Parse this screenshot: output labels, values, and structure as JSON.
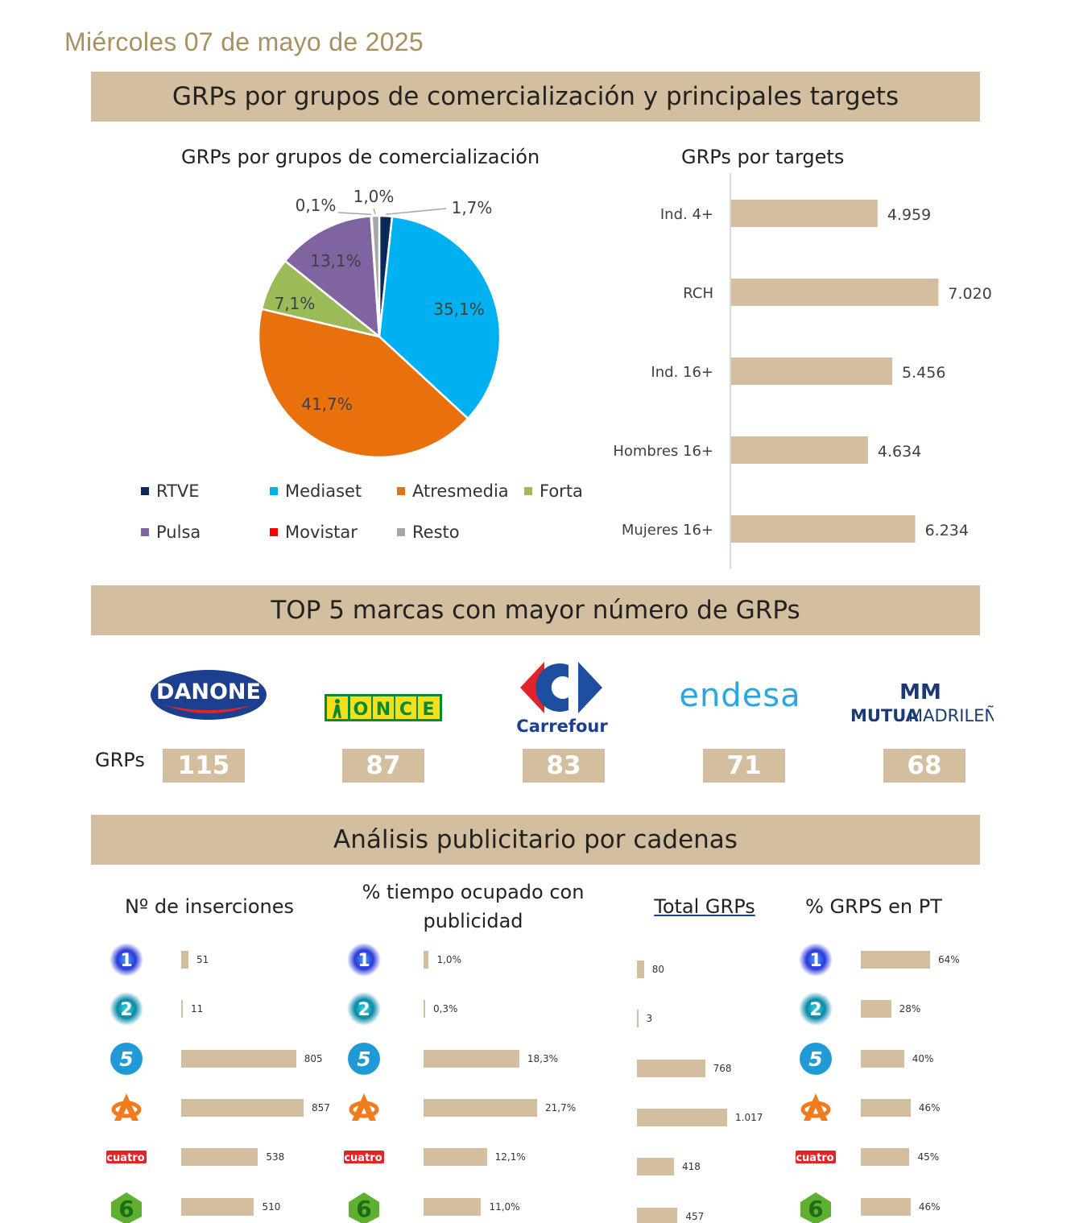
{
  "date": "Miércoles 07 de mayo de 2025",
  "banners": {
    "grps": "GRPs por grupos de comercialización y principales targets",
    "top5": "TOP 5 marcas con mayor número de GRPs",
    "cadenas": "Análisis publicitario por cadenas"
  },
  "pie_title": "GRPs por grupos de comercialización",
  "bar_title": "GRPs por targets",
  "colors": {
    "accent": "#d3bf9f",
    "rtve": "#0b2a5c",
    "mediaset": "#00b0f0",
    "atresmedia": "#e8700d",
    "forta": "#9bbb59",
    "pulsa": "#8064a2",
    "movistar": "#ff0000",
    "resto": "#a6a6a6"
  },
  "chart_data": [
    {
      "type": "pie",
      "title": "GRPs por grupos de comercialización",
      "slices": [
        {
          "name": "RTVE",
          "value": 1.7,
          "label": "1,7%"
        },
        {
          "name": "Mediaset",
          "value": 35.1,
          "label": "35,1%"
        },
        {
          "name": "Atresmedia",
          "value": 41.7,
          "label": "41,7%"
        },
        {
          "name": "Forta",
          "value": 7.1,
          "label": "7,1%"
        },
        {
          "name": "Pulsa",
          "value": 13.1,
          "label": "13,1%"
        },
        {
          "name": "Movistar",
          "value": 0.1,
          "label": "0,1%"
        },
        {
          "name": "Resto",
          "value": 1.0,
          "label": "1,0%"
        }
      ],
      "legend": [
        "RTVE",
        "Mediaset",
        "Atresmedia",
        "Forta",
        "Pulsa",
        "Movistar",
        "Resto"
      ],
      "legend_placement": "bottom"
    },
    {
      "type": "bar",
      "orientation": "horizontal",
      "title": "GRPs por targets",
      "categories": [
        "Ind. 4+",
        "RCH",
        "Ind. 16+",
        "Hombres 16+",
        "Mujeres 16+"
      ],
      "values": [
        4959,
        7020,
        5456,
        4634,
        6234
      ],
      "labels": [
        "4.959",
        "7.020",
        "5.456",
        "4.634",
        "6.234"
      ],
      "xlim": [
        0,
        7200
      ],
      "grid": false
    },
    {
      "type": "bar",
      "orientation": "horizontal",
      "title": "Nº de inserciones",
      "categories": [
        "La 1",
        "La 2",
        "Telecinco",
        "Antena 3",
        "Cuatro",
        "laSexta"
      ],
      "values": [
        51,
        11,
        805,
        857,
        538,
        510
      ],
      "labels": [
        "51",
        "11",
        "805",
        "857",
        "538",
        "510"
      ]
    },
    {
      "type": "bar",
      "orientation": "horizontal",
      "title": "% tiempo ocupado con publicidad",
      "categories": [
        "La 1",
        "La 2",
        "Telecinco",
        "Antena 3",
        "Cuatro",
        "laSexta"
      ],
      "values": [
        1.0,
        0.3,
        18.3,
        21.7,
        12.1,
        11.0
      ],
      "labels": [
        "1,0%",
        "0,3%",
        "18,3%",
        "21,7%",
        "12,1%",
        "11,0%"
      ]
    },
    {
      "type": "bar",
      "orientation": "horizontal",
      "title": "Total GRPs",
      "categories": [
        "La 1",
        "La 2",
        "Telecinco",
        "Antena 3",
        "Cuatro",
        "laSexta"
      ],
      "values": [
        80,
        3,
        768,
        1017,
        418,
        457
      ],
      "labels": [
        "80",
        "3",
        "768",
        "1.017",
        "418",
        "457"
      ]
    },
    {
      "type": "bar",
      "orientation": "horizontal",
      "title": "% GRPS en PT",
      "categories": [
        "La 1",
        "La 2",
        "Telecinco",
        "Antena 3",
        "Cuatro",
        "laSexta"
      ],
      "values": [
        64,
        28,
        40,
        46,
        45,
        46
      ],
      "labels": [
        "64%",
        "28%",
        "40%",
        "46%",
        "45%",
        "46%"
      ]
    }
  ],
  "top5": {
    "grps_label": "GRPs",
    "brands": [
      {
        "name": "DANONE",
        "grps": "115"
      },
      {
        "name": "ONCE",
        "grps": "87"
      },
      {
        "name": "Carrefour",
        "grps": "83"
      },
      {
        "name": "endesa",
        "grps": "71"
      },
      {
        "name": "MUTUA MADRILEÑA",
        "name_a": "MUTUA",
        "name_b": "MADRILEÑA",
        "mark": "MM",
        "grps": "68"
      }
    ]
  },
  "channels": {
    "titles": {
      "inserciones": "Nº de inserciones",
      "tiempo_1": "% tiempo ocupado con",
      "tiempo_2": "publicidad",
      "total": "Total GRPs",
      "pt": "% GRPS en PT"
    },
    "logos": [
      "1",
      "2",
      "5",
      "",
      "cuatro",
      "6"
    ]
  }
}
